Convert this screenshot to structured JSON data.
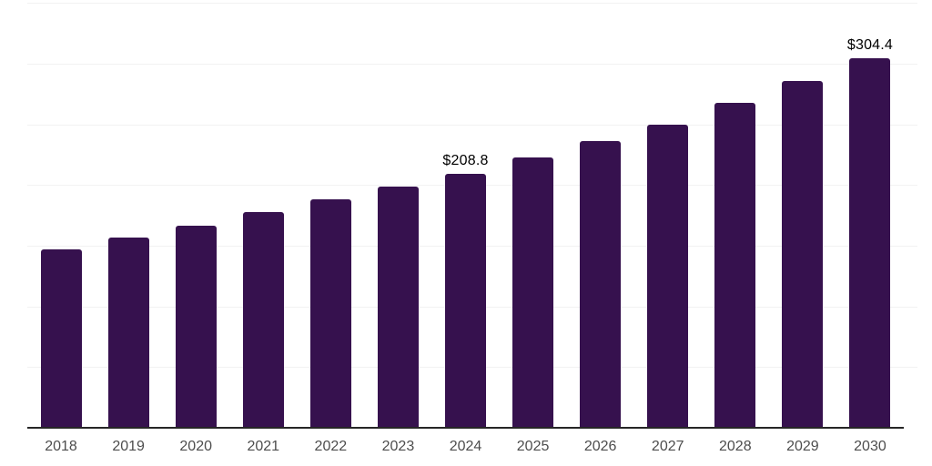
{
  "chart_data": {
    "type": "bar",
    "title": "",
    "xlabel": "",
    "ylabel": "",
    "categories": [
      "2018",
      "2019",
      "2020",
      "2021",
      "2022",
      "2023",
      "2024",
      "2025",
      "2026",
      "2027",
      "2028",
      "2029",
      "2030"
    ],
    "values": [
      146.6,
      156.4,
      166.5,
      177.5,
      188.1,
      198.7,
      208.8,
      222.8,
      235.8,
      250.0,
      267.5,
      285.5,
      304.4
    ],
    "data_labels": [
      "",
      "",
      "",
      "",
      "",
      "",
      "$208.8",
      "",
      "",
      "",
      "",
      "",
      "$304.4"
    ],
    "unit_prefix": "$",
    "ylim": [
      0,
      350
    ],
    "gridline_step": 50,
    "grid": "horizontal-only",
    "y_tick_labels_visible": false,
    "legend_position": "none",
    "colors": {
      "bar": "#36114E",
      "gridline": "#f2f2f2",
      "axis_line": "#262626",
      "tick_label": "#4d4d4d",
      "data_label": "#000000",
      "background": "#ffffff"
    }
  }
}
